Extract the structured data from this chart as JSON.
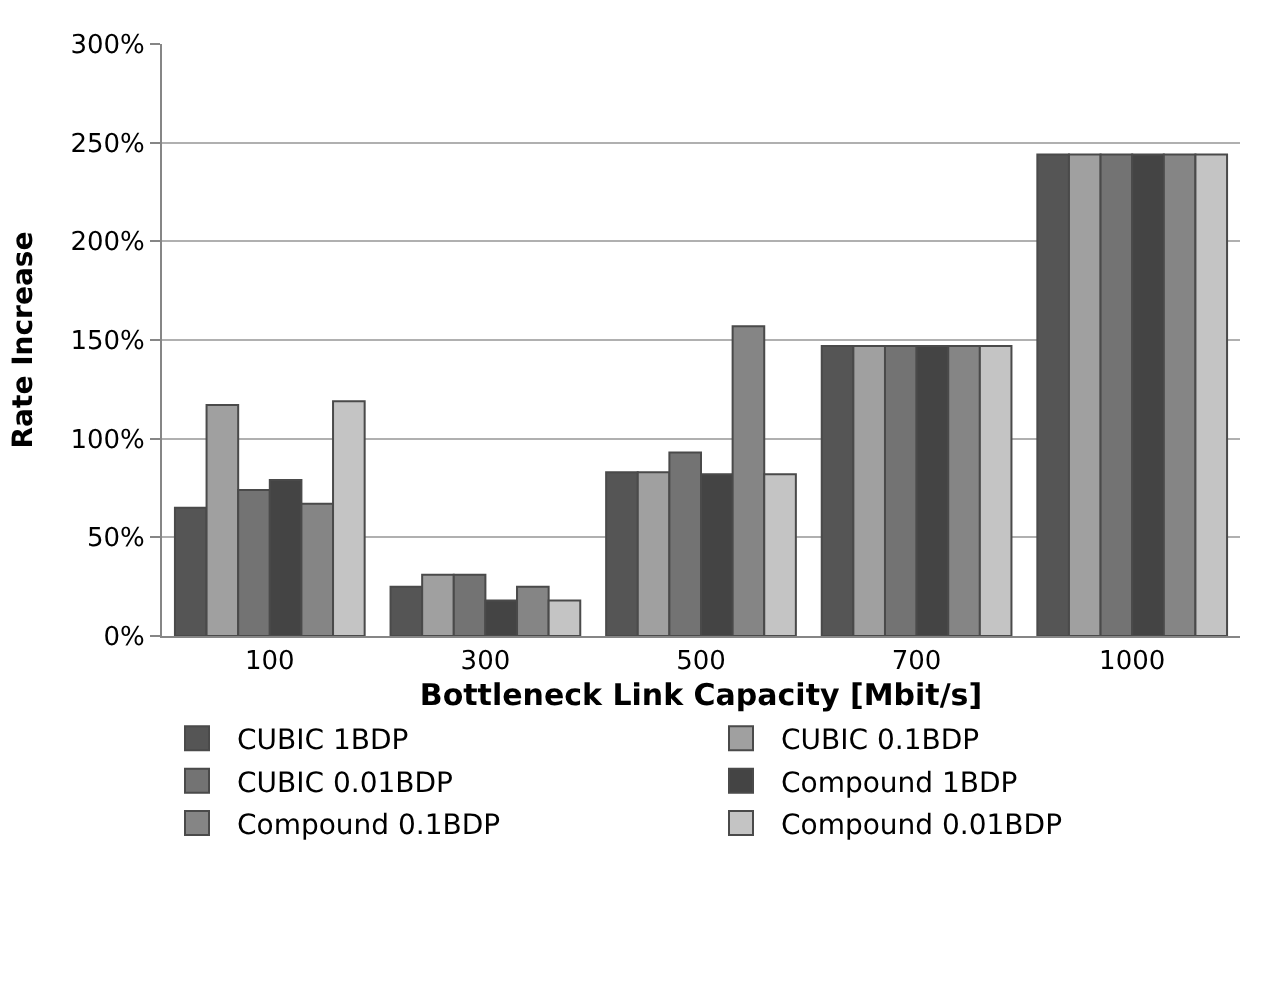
{
  "chart_data": {
    "type": "bar",
    "xlabel": "Bottleneck Link Capacity [Mbit/s]",
    "ylabel": "Rate Increase",
    "categories": [
      "100",
      "300",
      "500",
      "700",
      "1000"
    ],
    "series": [
      {
        "name": "CUBIC 1BDP",
        "color": "#555555",
        "values": [
          65,
          25,
          83,
          147,
          244
        ]
      },
      {
        "name": "CUBIC 0.1BDP",
        "color": "#a0a0a0",
        "values": [
          117,
          31,
          83,
          147,
          244
        ]
      },
      {
        "name": "CUBIC 0.01BDP",
        "color": "#737373",
        "values": [
          74,
          31,
          93,
          147,
          244
        ]
      },
      {
        "name": "Compound 1BDP",
        "color": "#444444",
        "values": [
          79,
          18,
          82,
          147,
          244
        ]
      },
      {
        "name": "Compound 0.1BDP",
        "color": "#858585",
        "values": [
          67,
          25,
          157,
          147,
          244
        ]
      },
      {
        "name": "Compound 0.01BDP",
        "color": "#c4c4c4",
        "values": [
          119,
          18,
          82,
          147,
          244
        ]
      }
    ],
    "ylim": [
      0,
      300
    ],
    "yticks": [
      {
        "value": 0,
        "label": "0%"
      },
      {
        "value": 50,
        "label": "50%"
      },
      {
        "value": 100,
        "label": "100%"
      },
      {
        "value": 150,
        "label": "150%"
      },
      {
        "value": 200,
        "label": "200%"
      },
      {
        "value": 250,
        "label": "250%"
      },
      {
        "value": 300,
        "label": "300%"
      }
    ],
    "grid": "y",
    "legend": "bottom"
  }
}
